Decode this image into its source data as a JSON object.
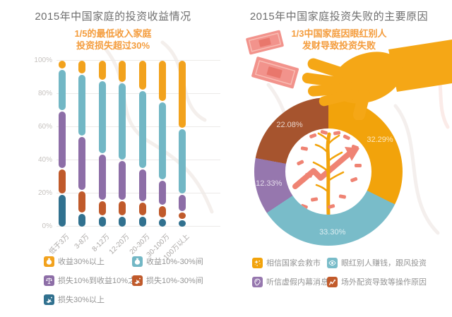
{
  "colors": {
    "title": "#6E6E6E",
    "subtitle": "#F49C3C",
    "axis_tick": "#C6C2BF",
    "x_label": "#ABA8A6",
    "gridline": "#ECEAE8",
    "legend_text": "#949494",
    "slice_value_label": "rgba(255,255,255,0.75)",
    "hand_illustration": "#F5A716",
    "banknote": "#F2938C",
    "tree_trunk": "#F2A30B",
    "tree_leaf": "#EF8373"
  },
  "chart_data": [
    {
      "type": "bar",
      "stacked": true,
      "title": "2015年中国家庭的投资收益情况",
      "subtitle_lines": [
        "1/5的最低收入家庭",
        "投资损失超过30%"
      ],
      "categories": [
        "低于3万",
        "3-8万",
        "8-12万",
        "12-20万",
        "20-30万",
        "30-100万",
        "100万以上"
      ],
      "y_ticks": [
        "100%",
        "80%",
        "60%",
        "40%",
        "20%",
        "0%"
      ],
      "ylim": [
        0,
        100
      ],
      "unit": "%",
      "grid": true,
      "legend_position": "bottom",
      "series": [
        {
          "name": "收益30%以上",
          "color": "#F2A21D",
          "icon": "money-bag-icon",
          "values": [
            5,
            8,
            12,
            13,
            18,
            25,
            42
          ]
        },
        {
          "name": "收益10%-30%间",
          "color": "#72B7C5",
          "icon": "money-bag-icon",
          "values": [
            25,
            38,
            45,
            48,
            48,
            48,
            40
          ]
        },
        {
          "name": "损失10%到收益10%之间",
          "color": "#8D6EA7",
          "icon": "scales-icon",
          "values": [
            35,
            33,
            28,
            24,
            20,
            15,
            10
          ]
        },
        {
          "name": "损失10%-30%间",
          "color": "#C05A2B",
          "icon": "falling-person-icon",
          "values": [
            15,
            13,
            9,
            9,
            8,
            7,
            4
          ]
        },
        {
          "name": "损失30%以上",
          "color": "#31718F",
          "icon": "falling-person-icon",
          "values": [
            20,
            8,
            6,
            6,
            6,
            5,
            4
          ]
        }
      ]
    },
    {
      "type": "pie",
      "donut": true,
      "title": "2015年中国家庭投资失败的主要原因",
      "subtitle_lines": [
        "1/3中国家庭因眼红别人",
        "发财导致投资失败"
      ],
      "start_angle_deg": 0,
      "direction": "clockwise",
      "legend_position": "bottom",
      "slices": [
        {
          "label": "相信国家会救市",
          "value": 32.29,
          "display": "32.29%",
          "color": "#F2A30B",
          "icon": "sparkle-stars-icon"
        },
        {
          "label": "眼红别人赚钱，跟风投资",
          "value": 33.3,
          "display": "33.30%",
          "color": "#79BCC9",
          "icon": "eye-icon"
        },
        {
          "label": "听信虚假内幕消息",
          "value": 12.33,
          "display": "12.33%",
          "color": "#9677AE",
          "icon": "ear-icon"
        },
        {
          "label": "场外配资导致等操作原因",
          "value": 22.08,
          "display": "22.08%",
          "color": "#A6542E",
          "legend_color": "#C25B2B",
          "icon": "chart-line-icon"
        }
      ]
    }
  ]
}
